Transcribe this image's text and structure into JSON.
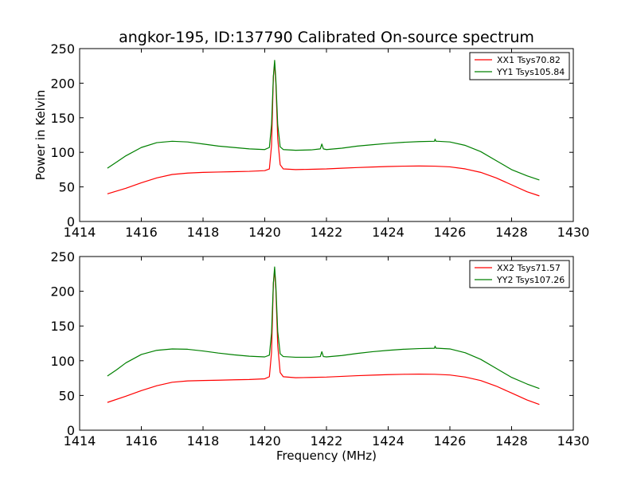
{
  "title": "angkor-195, ID:137790 Calibrated On-source spectrum",
  "chart_data": [
    {
      "type": "line",
      "xlim": [
        1414,
        1430
      ],
      "ylim": [
        0,
        250
      ],
      "xticks": [
        "1414",
        "1416",
        "1418",
        "1420",
        "1422",
        "1424",
        "1426",
        "1428",
        "1430"
      ],
      "yticks": [
        "0",
        "50",
        "100",
        "150",
        "200",
        "250"
      ],
      "xlabel": "",
      "ylabel": "Power in Kelvin",
      "legend": "top-right",
      "grid": false,
      "series": [
        {
          "name": "XX1 Tsys70.82",
          "color": "#ff0000",
          "x": [
            1414.9,
            1415.5,
            1416.0,
            1416.5,
            1417.0,
            1417.5,
            1418.0,
            1418.5,
            1419.0,
            1419.5,
            1420.0,
            1420.15,
            1420.22,
            1420.28,
            1420.32,
            1420.36,
            1420.42,
            1420.5,
            1420.6,
            1421.0,
            1421.5,
            1422.0,
            1422.5,
            1423.0,
            1423.5,
            1424.0,
            1424.5,
            1425.0,
            1425.5,
            1426.0,
            1426.5,
            1427.0,
            1427.5,
            1428.0,
            1428.5,
            1428.9
          ],
          "y": [
            40,
            48,
            56,
            63,
            68,
            70,
            71,
            71.5,
            72,
            72.5,
            73.5,
            76,
            110,
            210,
            228,
            200,
            120,
            82,
            76,
            75,
            75.5,
            76,
            77,
            78,
            78.8,
            79.5,
            80,
            80.2,
            80,
            79,
            76,
            71,
            63,
            53,
            43,
            37
          ]
        },
        {
          "name": "YY1 Tsys105.84",
          "color": "#008000",
          "x": [
            1414.9,
            1415.2,
            1415.5,
            1416.0,
            1416.5,
            1417.0,
            1417.5,
            1418.0,
            1418.5,
            1419.0,
            1419.5,
            1420.0,
            1420.15,
            1420.22,
            1420.28,
            1420.32,
            1420.36,
            1420.42,
            1420.5,
            1420.6,
            1421.0,
            1421.5,
            1421.8,
            1421.85,
            1421.9,
            1422.0,
            1422.5,
            1423.0,
            1423.5,
            1424.0,
            1424.5,
            1425.0,
            1425.5,
            1425.52,
            1425.55,
            1425.6,
            1426.0,
            1426.5,
            1427.0,
            1427.5,
            1428.0,
            1428.5,
            1428.9
          ],
          "y": [
            77,
            86,
            95,
            107,
            114,
            116,
            115,
            112,
            109,
            107,
            105,
            104,
            107,
            140,
            210,
            233,
            205,
            140,
            108,
            104,
            103,
            103.5,
            105,
            112,
            105,
            104,
            106,
            109,
            111,
            113,
            114.5,
            115.5,
            116,
            119,
            116,
            116,
            115,
            110,
            101,
            88,
            75,
            66,
            60
          ]
        }
      ]
    },
    {
      "type": "line",
      "xlim": [
        1414,
        1430
      ],
      "ylim": [
        0,
        250
      ],
      "xticks": [
        "1414",
        "1416",
        "1418",
        "1420",
        "1422",
        "1424",
        "1426",
        "1428",
        "1430"
      ],
      "yticks": [
        "0",
        "50",
        "100",
        "150",
        "200",
        "250"
      ],
      "xlabel": "Frequency (MHz)",
      "ylabel": "",
      "legend": "top-right",
      "grid": false,
      "series": [
        {
          "name": "XX2 Tsys71.57",
          "color": "#ff0000",
          "x": [
            1414.9,
            1415.5,
            1416.0,
            1416.5,
            1417.0,
            1417.5,
            1418.0,
            1418.5,
            1419.0,
            1419.5,
            1420.0,
            1420.15,
            1420.22,
            1420.28,
            1420.32,
            1420.36,
            1420.42,
            1420.5,
            1420.6,
            1421.0,
            1421.5,
            1422.0,
            1422.5,
            1423.0,
            1423.5,
            1424.0,
            1424.5,
            1425.0,
            1425.5,
            1426.0,
            1426.5,
            1427.0,
            1427.5,
            1428.0,
            1428.5,
            1428.9
          ],
          "y": [
            40,
            49,
            57,
            64,
            69,
            71,
            71.5,
            72,
            72.5,
            73,
            74,
            77,
            112,
            212,
            230,
            202,
            122,
            83,
            77,
            75.5,
            76,
            76.5,
            77.5,
            78.5,
            79.3,
            80,
            80.5,
            80.7,
            80.5,
            79.5,
            76.5,
            71.5,
            63.5,
            53.5,
            43.5,
            37
          ]
        },
        {
          "name": "YY2 Tsys107.26",
          "color": "#008000",
          "x": [
            1414.9,
            1415.2,
            1415.5,
            1416.0,
            1416.5,
            1417.0,
            1417.5,
            1418.0,
            1418.5,
            1419.0,
            1419.5,
            1420.0,
            1420.15,
            1420.22,
            1420.28,
            1420.32,
            1420.36,
            1420.42,
            1420.5,
            1420.6,
            1421.0,
            1421.5,
            1421.8,
            1421.85,
            1421.9,
            1422.0,
            1422.5,
            1423.0,
            1423.5,
            1424.0,
            1424.5,
            1425.0,
            1425.5,
            1425.52,
            1425.55,
            1425.6,
            1426.0,
            1426.5,
            1427.0,
            1427.5,
            1428.0,
            1428.5,
            1428.9
          ],
          "y": [
            78,
            87,
            97,
            109,
            115,
            117,
            116.5,
            114,
            111,
            108.5,
            106.5,
            105.5,
            108,
            140,
            212,
            235,
            208,
            142,
            110,
            106,
            105,
            105,
            106,
            113,
            106,
            105.5,
            107.5,
            110.5,
            113,
            115,
            116.5,
            117.5,
            118,
            121,
            118,
            118,
            117,
            111.5,
            102,
            89,
            76,
            66.5,
            60
          ]
        }
      ]
    }
  ]
}
